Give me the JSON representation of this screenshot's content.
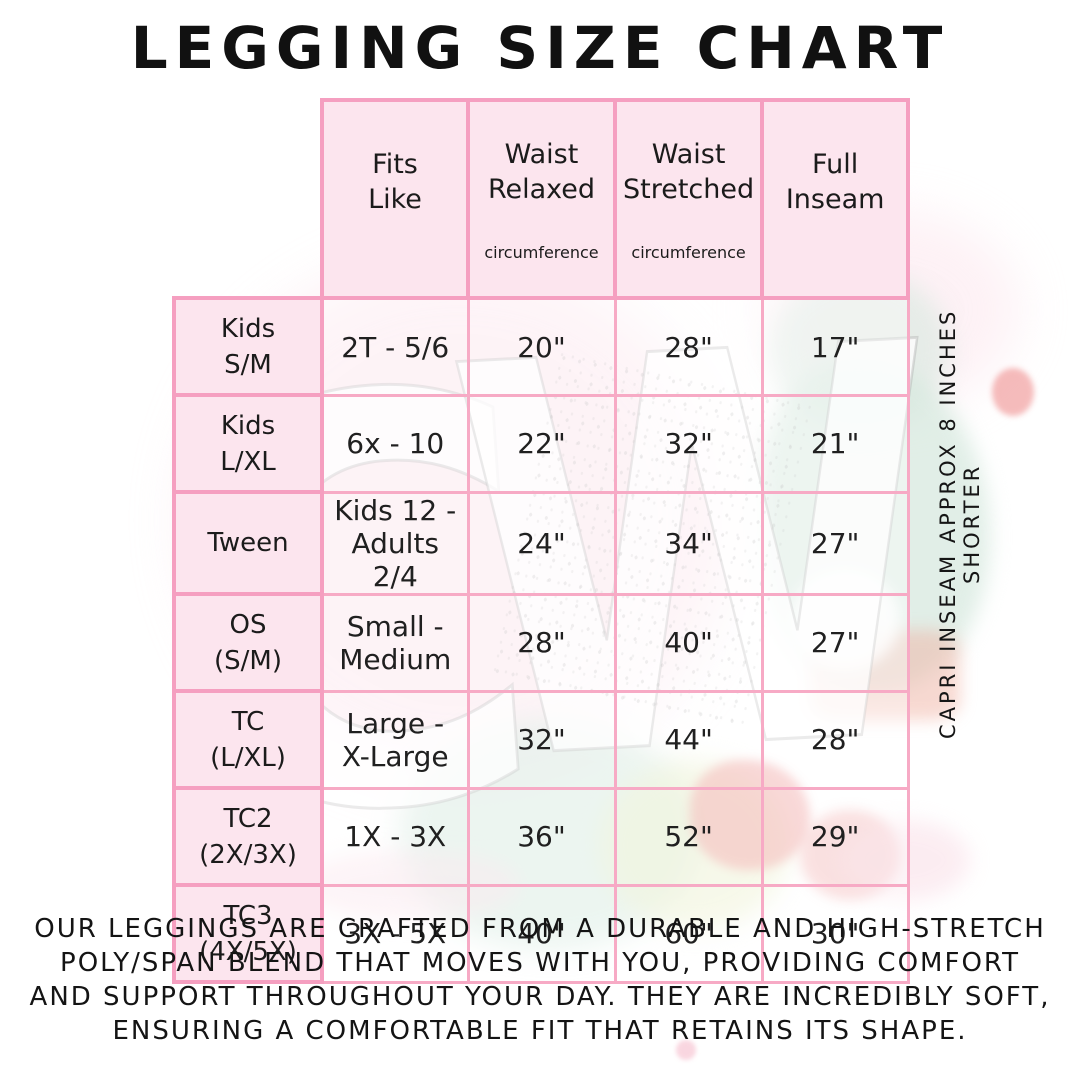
{
  "title": "LEGGING SIZE CHART",
  "table": {
    "columns": [
      {
        "label": "Fits\nLike",
        "sub": ""
      },
      {
        "label": "Waist\nRelaxed",
        "sub": "circumference"
      },
      {
        "label": "Waist\nStretched",
        "sub": "circumference"
      },
      {
        "label": "Full\nInseam",
        "sub": ""
      }
    ],
    "rows": [
      {
        "size": "Kids\nS/M",
        "fits_like": "2T - 5/6",
        "waist_relaxed": "20\"",
        "waist_stretched": "28\"",
        "full_inseam": "17\""
      },
      {
        "size": "Kids\nL/XL",
        "fits_like": "6x - 10",
        "waist_relaxed": "22\"",
        "waist_stretched": "32\"",
        "full_inseam": "21\""
      },
      {
        "size": "Tween",
        "fits_like": "Kids 12 -\nAdults 2/4",
        "waist_relaxed": "24\"",
        "waist_stretched": "34\"",
        "full_inseam": "27\""
      },
      {
        "size": "OS\n(S/M)",
        "fits_like": "Small -\nMedium",
        "waist_relaxed": "28\"",
        "waist_stretched": "40\"",
        "full_inseam": "27\""
      },
      {
        "size": "TC\n(L/XL)",
        "fits_like": "Large -\nX-Large",
        "waist_relaxed": "32\"",
        "waist_stretched": "44\"",
        "full_inseam": "28\""
      },
      {
        "size": "TC2\n(2X/3X)",
        "fits_like": "1X - 3X",
        "waist_relaxed": "36\"",
        "waist_stretched": "52\"",
        "full_inseam": "29\""
      },
      {
        "size": "TC3\n(4X/5X)",
        "fits_like": "3X - 5X",
        "waist_relaxed": "40\"",
        "waist_stretched": "60\"",
        "full_inseam": "30\""
      }
    ]
  },
  "side_note": "CAPRI INSEAM APPROX 8 INCHES SHORTER",
  "footer": {
    "lines": [
      "OUR LEGGINGS ARE CRAFTED FROM A DURABLE AND HIGH-STRETCH",
      "POLY/SPAN BLEND THAT MOVES WITH YOU, PROVIDING COMFORT",
      "AND SUPPORT THROUGHOUT YOUR DAY. THEY ARE INCREDIBLY SOFT,",
      "ENSURING A COMFORTABLE FIT THAT RETAINS ITS SHAPE."
    ]
  },
  "watermark": {
    "letters": [
      "C",
      "W"
    ]
  },
  "colors": {
    "table_border_pink": "#f7aac5",
    "header_border_pink": "#f59fc0",
    "header_fill_pink": "#fce5ee",
    "text_black": "#1c1c1c",
    "watermark_mint": "#d7e9df",
    "watermark_pink": "#f9d3e0",
    "watermark_red": "#ee8c8c",
    "watermark_yellow_green": "#e9eec6"
  }
}
